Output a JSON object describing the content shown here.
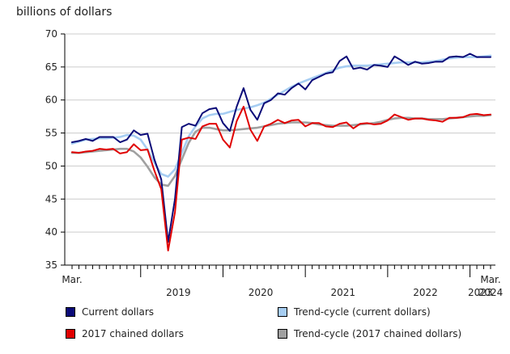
{
  "chart_data": {
    "type": "line",
    "ylabel": "billions of dollars",
    "ylim": [
      35,
      70
    ],
    "yticks": [
      35,
      40,
      45,
      50,
      55,
      60,
      65,
      70
    ],
    "x_start": "Mar. 2018",
    "x_end": "Mar. 2024",
    "x_edge_labels": {
      "start": "Mar.",
      "end": "Mar."
    },
    "year_labels": [
      "2019",
      "2020",
      "2021",
      "2022",
      "2023",
      "2024"
    ],
    "grid": true,
    "legend": "bottom",
    "series": [
      {
        "name": "Current dollars",
        "color": "#0a0a78",
        "values": [
          53.6,
          53.8,
          54.1,
          53.8,
          54.4,
          54.4,
          54.4,
          53.6,
          54.0,
          55.4,
          54.7,
          54.9,
          51.0,
          48.0,
          38.5,
          45.0,
          55.9,
          56.4,
          56.1,
          58.0,
          58.6,
          58.8,
          56.5,
          55.3,
          59.0,
          61.8,
          58.5,
          57.0,
          59.5,
          60.0,
          61.0,
          60.8,
          61.8,
          62.5,
          61.6,
          63.0,
          63.5,
          64.0,
          64.2,
          65.9,
          66.6,
          64.7,
          64.9,
          64.6,
          65.3,
          65.2,
          65.0,
          66.6,
          66.0,
          65.3,
          65.8,
          65.5,
          65.6,
          65.8,
          65.8,
          66.5,
          66.6,
          66.5,
          67.0,
          66.5,
          66.5,
          66.5
        ]
      },
      {
        "name": "Trend-cycle (current dollars)",
        "color": "#a6cdf2",
        "values": [
          53.4,
          53.7,
          54.0,
          54.1,
          54.2,
          54.2,
          54.3,
          54.4,
          54.7,
          54.6,
          54.0,
          52.5,
          50.5,
          48.8,
          48.4,
          49.5,
          52.0,
          54.5,
          56.0,
          57.2,
          57.7,
          57.9,
          57.9,
          58.2,
          58.5,
          58.7,
          58.9,
          59.2,
          59.6,
          60.2,
          60.8,
          61.4,
          62.0,
          62.5,
          62.9,
          63.3,
          63.7,
          64.1,
          64.5,
          64.9,
          65.1,
          65.2,
          65.2,
          65.2,
          65.3,
          65.4,
          65.5,
          65.6,
          65.7,
          65.7,
          65.7,
          65.7,
          65.8,
          65.9,
          66.1,
          66.3,
          66.4,
          66.5,
          66.5,
          66.5,
          66.6,
          66.7
        ]
      },
      {
        "name": "2017 chained dollars",
        "color": "#e00000",
        "values": [
          52.1,
          52.0,
          52.2,
          52.3,
          52.6,
          52.5,
          52.6,
          51.9,
          52.1,
          53.3,
          52.4,
          52.5,
          49.3,
          46.5,
          37.2,
          43.0,
          54.0,
          54.3,
          54.1,
          56.0,
          56.4,
          56.4,
          54.0,
          52.8,
          56.8,
          59.0,
          55.5,
          53.8,
          56.0,
          56.4,
          57.0,
          56.5,
          56.9,
          57.0,
          56.0,
          56.5,
          56.5,
          56.0,
          55.9,
          56.4,
          56.6,
          55.7,
          56.4,
          56.5,
          56.3,
          56.4,
          56.9,
          57.8,
          57.4,
          57.0,
          57.2,
          57.2,
          57.0,
          56.9,
          56.7,
          57.3,
          57.3,
          57.4,
          57.8,
          57.9,
          57.7,
          57.8
        ]
      },
      {
        "name": "Trend-cycle (2017 chained dollars)",
        "color": "#a0a0a0",
        "values": [
          52.0,
          52.0,
          52.1,
          52.2,
          52.3,
          52.4,
          52.5,
          52.6,
          52.6,
          52.2,
          51.3,
          49.9,
          48.3,
          47.2,
          47.0,
          48.5,
          51.0,
          53.5,
          55.2,
          55.8,
          55.8,
          55.6,
          55.4,
          55.4,
          55.5,
          55.6,
          55.7,
          55.8,
          56.0,
          56.2,
          56.4,
          56.5,
          56.6,
          56.6,
          56.6,
          56.5,
          56.3,
          56.2,
          56.1,
          56.1,
          56.1,
          56.2,
          56.3,
          56.4,
          56.5,
          56.7,
          57.0,
          57.2,
          57.3,
          57.3,
          57.2,
          57.2,
          57.1,
          57.1,
          57.1,
          57.2,
          57.3,
          57.4,
          57.5,
          57.6,
          57.6,
          57.7
        ]
      }
    ]
  }
}
